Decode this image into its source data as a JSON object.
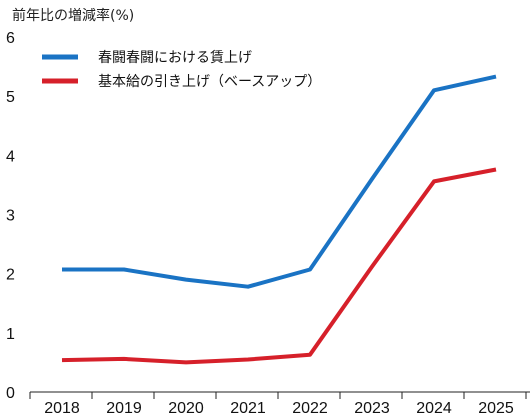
{
  "chart_data": {
    "type": "line",
    "title": "",
    "ylabel": "前年比の増減率(%)",
    "xlabel": "",
    "categories": [
      "2018",
      "2019",
      "2020",
      "2021",
      "2022",
      "2023",
      "2024",
      "2025"
    ],
    "yticks": [
      0,
      1,
      2,
      3,
      4,
      5,
      6
    ],
    "ylim": [
      0,
      6
    ],
    "grid": false,
    "legend_position": "top-left",
    "series": [
      {
        "name": "春闘春闘における賃上げ",
        "color": "#1a73c4",
        "values": [
          2.07,
          2.07,
          1.9,
          1.78,
          2.07,
          3.6,
          5.1,
          5.33
        ]
      },
      {
        "name": "基本給の引き上げ（ベースアップ）",
        "color": "#d6202a",
        "values": [
          0.54,
          0.56,
          0.5,
          0.55,
          0.63,
          2.12,
          3.56,
          3.76
        ]
      }
    ]
  }
}
